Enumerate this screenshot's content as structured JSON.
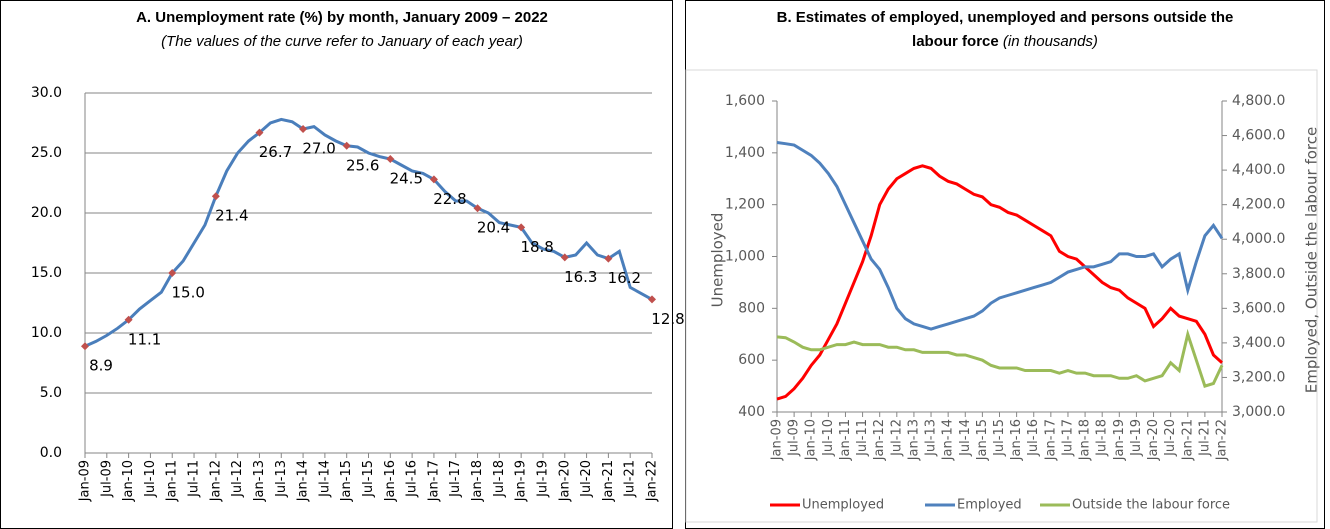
{
  "chart_data": [
    {
      "type": "line",
      "title": "A. Unemployment rate (%) by month, January  2009 – 2022",
      "subtitle": "(The values of the curve refer to January of each year)",
      "categories": [
        "Jan-09",
        null,
        "Jul-09",
        null,
        "Jan-10",
        null,
        "Jul-10",
        null,
        "Jan-11",
        null,
        "Jul-11",
        null,
        "Jan-12",
        null,
        "Jul-12",
        null,
        "Jan-13",
        null,
        "Jul-13",
        null,
        "Jan-14",
        null,
        "Jul-14",
        null,
        "Jan-15",
        null,
        "Jul-15",
        null,
        "Jan-16",
        null,
        "Jul-16",
        null,
        "Jan-17",
        null,
        "Jul-17",
        null,
        "Jan-18",
        null,
        "Jul-18",
        null,
        "Jan-19",
        null,
        "Jul-19",
        null,
        "Jan-20",
        null,
        "Jul-20",
        null,
        "Jan-21",
        null,
        "Jul-21",
        null,
        "Jan-22"
      ],
      "series": [
        {
          "color": "#4a7ebb",
          "marker_color": "#c0504d",
          "values": [
            8.9,
            9.3,
            9.8,
            10.4,
            11.1,
            12.0,
            12.7,
            13.4,
            15.0,
            16.0,
            17.5,
            19.0,
            21.4,
            23.5,
            25.0,
            26.0,
            26.7,
            27.5,
            27.8,
            27.6,
            27.0,
            27.2,
            26.5,
            26.0,
            25.6,
            25.5,
            25.0,
            24.7,
            24.5,
            24.0,
            23.5,
            23.3,
            22.8,
            21.8,
            21.0,
            21.0,
            20.4,
            20.0,
            19.2,
            19.0,
            18.8,
            17.5,
            17.0,
            16.8,
            16.3,
            16.5,
            17.5,
            16.5,
            16.2,
            16.8,
            13.8,
            13.3,
            12.8
          ],
          "value_labels": [
            "8.9",
            null,
            null,
            null,
            "11.1",
            null,
            null,
            null,
            "15.0",
            null,
            null,
            null,
            "21.4",
            null,
            null,
            null,
            "26.7",
            null,
            null,
            null,
            "27.0",
            null,
            null,
            null,
            "25.6",
            null,
            null,
            null,
            "24.5",
            null,
            null,
            null,
            "22.8",
            null,
            null,
            null,
            "20.4",
            null,
            null,
            null,
            "18.8",
            null,
            null,
            null,
            "16.3",
            null,
            null,
            null,
            "16.2",
            null,
            null,
            null,
            "12.8"
          ]
        }
      ],
      "ylim": [
        0,
        30
      ],
      "yticks": [
        {
          "value": 0,
          "label": "0.0"
        },
        {
          "value": 5,
          "label": "5.0"
        },
        {
          "value": 10,
          "label": "10.0"
        },
        {
          "value": 15,
          "label": "15.0"
        },
        {
          "value": 20,
          "label": "20.0"
        },
        {
          "value": 25,
          "label": "25.0"
        },
        {
          "value": 30,
          "label": "30.0"
        }
      ],
      "grid": true
    },
    {
      "type": "line",
      "title_lines": [
        "B. Estimates of employed, unemployed and persons outside the",
        "labour force"
      ],
      "subtitle": "(in thousands)",
      "ylabel": "Unemployed",
      "y2label": "Employed, Outside the labour force",
      "categories": [
        "Jan-09",
        null,
        "Jul-09",
        null,
        "Jan-10",
        null,
        "Jul-10",
        null,
        "Jan-11",
        null,
        "Jul-11",
        null,
        "Jan-12",
        null,
        "Jul-12",
        null,
        "Jan-13",
        null,
        "Jul-13",
        null,
        "Jan-14",
        null,
        "Jul-14",
        null,
        "Jan-15",
        null,
        "Jul-15",
        null,
        "Jan-16",
        null,
        "Jul-16",
        null,
        "Jan-17",
        null,
        "Jul-17",
        null,
        "Jan-18",
        null,
        "Jul-18",
        null,
        "Jan-19",
        null,
        "Jul-19",
        null,
        "Jan-20",
        null,
        "Jul-20",
        null,
        "Jan-21",
        null,
        "Jul-21",
        null,
        "Jan-22"
      ],
      "series": [
        {
          "name": "Unemployed",
          "color": "#ff0000",
          "values": [
            450,
            460,
            490,
            530,
            580,
            620,
            680,
            740,
            820,
            900,
            980,
            1080,
            1200,
            1260,
            1300,
            1320,
            1340,
            1350,
            1340,
            1310,
            1290,
            1280,
            1260,
            1240,
            1230,
            1200,
            1190,
            1170,
            1160,
            1140,
            1120,
            1100,
            1080,
            1020,
            1000,
            990,
            960,
            930,
            900,
            880,
            870,
            840,
            820,
            800,
            730,
            760,
            800,
            770,
            760,
            750,
            700,
            620,
            590
          ]
        },
        {
          "name": "Employed",
          "color": "#4f81bd",
          "axis": "y2",
          "values": [
            4560,
            4553,
            4545,
            4515,
            4485,
            4440,
            4380,
            4305,
            4200,
            4095,
            3990,
            3885,
            3825,
            3720,
            3600,
            3540,
            3510,
            3495,
            3480,
            3495,
            3510,
            3525,
            3540,
            3555,
            3585,
            3630,
            3660,
            3675,
            3690,
            3705,
            3720,
            3735,
            3750,
            3780,
            3810,
            3825,
            3840,
            3840,
            3855,
            3870,
            3915,
            3915,
            3900,
            3900,
            3915,
            3840,
            3885,
            3915,
            3705,
            3870,
            4020,
            4080,
            4005
          ]
        },
        {
          "name": "Outside the labour force",
          "color": "#9bbb59",
          "axis": "y2",
          "values": [
            3435,
            3430,
            3405,
            3375,
            3360,
            3360,
            3375,
            3390,
            3390,
            3405,
            3390,
            3390,
            3390,
            3375,
            3375,
            3360,
            3360,
            3345,
            3345,
            3345,
            3345,
            3330,
            3330,
            3315,
            3300,
            3270,
            3255,
            3255,
            3255,
            3240,
            3240,
            3240,
            3240,
            3225,
            3240,
            3225,
            3225,
            3210,
            3210,
            3210,
            3195,
            3195,
            3210,
            3180,
            3195,
            3210,
            3285,
            3240,
            3450,
            3300,
            3150,
            3165,
            3270
          ]
        }
      ],
      "ylim": [
        400,
        1600
      ],
      "yticks": [
        400,
        600,
        800,
        {
          "value": 1000,
          "label": "1,000"
        },
        {
          "value": 1200,
          "label": "1,200"
        },
        {
          "value": 1400,
          "label": "1,400"
        },
        {
          "value": 1600,
          "label": "1,600"
        }
      ],
      "y2lim": [
        3000,
        4800
      ],
      "y2ticks": [
        {
          "value": 3000,
          "label": "3,000.0"
        },
        {
          "value": 3200,
          "label": "3,200.0"
        },
        {
          "value": 3400,
          "label": "3,400.0"
        },
        {
          "value": 3600,
          "label": "3,600.0"
        },
        {
          "value": 3800,
          "label": "3,800.0"
        },
        {
          "value": 4000,
          "label": "4,000.0"
        },
        {
          "value": 4200,
          "label": "4,200.0"
        },
        {
          "value": 4400,
          "label": "4,400.0"
        },
        {
          "value": 4600,
          "label": "4,600.0"
        },
        {
          "value": 4800,
          "label": "4,800.0"
        }
      ],
      "grid": false,
      "legend": "bottom"
    }
  ]
}
